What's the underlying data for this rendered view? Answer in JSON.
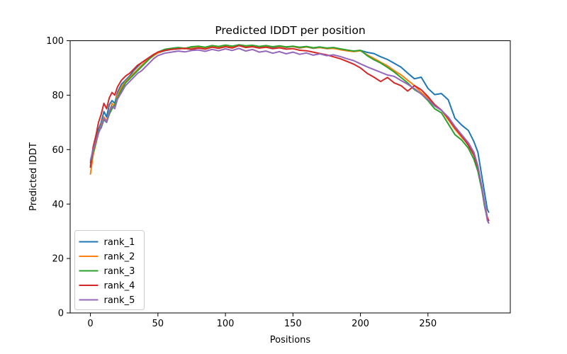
{
  "chart_data": {
    "type": "line",
    "title": "Predicted lDDT per position",
    "xlabel": "Positions",
    "ylabel": "Predicted lDDT",
    "xlim": [
      -15,
      311
    ],
    "ylim": [
      0,
      100
    ],
    "xticks": [
      0,
      50,
      100,
      150,
      200,
      250
    ],
    "yticks": [
      0,
      20,
      40,
      60,
      80,
      100
    ],
    "grid": false,
    "legend_position": "lower left",
    "background_color": "#ffffff",
    "axes_edge_color": "#000000",
    "legend_border_color": "#cccccc",
    "x": [
      0,
      2,
      4,
      6,
      8,
      10,
      12,
      14,
      16,
      18,
      20,
      23,
      26,
      29,
      32,
      35,
      38,
      41,
      44,
      47,
      50,
      55,
      60,
      65,
      70,
      75,
      80,
      85,
      90,
      95,
      100,
      105,
      110,
      115,
      120,
      125,
      130,
      135,
      140,
      145,
      150,
      155,
      160,
      165,
      170,
      175,
      180,
      185,
      190,
      195,
      200,
      205,
      210,
      215,
      220,
      225,
      230,
      235,
      240,
      245,
      250,
      255,
      260,
      265,
      270,
      275,
      280,
      284,
      287,
      290,
      292,
      294,
      295
    ],
    "series": [
      {
        "name": "rank_1",
        "color": "#1f77b4",
        "y": [
          55.2,
          60.5,
          63,
          67.5,
          70,
          74,
          72,
          76.5,
          78,
          77,
          81,
          84,
          85.5,
          87,
          89,
          90.5,
          92,
          93,
          94,
          95,
          95.5,
          96.3,
          96.8,
          97,
          97.3,
          96.9,
          97.5,
          97.2,
          97.8,
          97.4,
          98,
          97.6,
          98.2,
          97.7,
          98,
          97.5,
          97.9,
          97.4,
          98,
          97.5,
          97.9,
          97.3,
          97.7,
          97.2,
          97.5,
          97.1,
          97.3,
          96.8,
          96.4,
          96.1,
          96.4,
          95.7,
          95.3,
          94.1,
          93.1,
          91.7,
          90.3,
          88.1,
          86,
          86.6,
          82.5,
          80.2,
          80.6,
          78.3,
          71.5,
          69,
          67,
          63,
          59,
          50,
          44,
          38,
          37
        ]
      },
      {
        "name": "rank_2",
        "color": "#ff7f0e",
        "y": [
          51,
          58,
          62,
          66,
          69,
          72,
          70.5,
          74,
          77,
          76,
          80,
          83,
          85,
          86.5,
          88,
          89.5,
          91,
          92.5,
          93.5,
          94.5,
          95.5,
          96.5,
          97,
          97.3,
          97,
          97.5,
          97.8,
          97.4,
          98,
          97.7,
          98.2,
          97.8,
          98.3,
          97.9,
          98.2,
          97.8,
          98.1,
          97.7,
          98,
          97.6,
          97.9,
          97.4,
          97.7,
          97.3,
          97.5,
          97.1,
          97.2,
          96.7,
          96.3,
          96,
          96.3,
          94.8,
          93.5,
          92.1,
          90.8,
          89,
          87.5,
          85.5,
          83.5,
          81,
          79,
          76.5,
          74.5,
          71,
          67.5,
          64.5,
          62,
          58,
          53,
          46,
          40,
          35,
          34
        ]
      },
      {
        "name": "rank_3",
        "color": "#2ca02c",
        "y": [
          54,
          59,
          62.5,
          66.5,
          68,
          71,
          70,
          73,
          75,
          76.5,
          79,
          82,
          84.5,
          86,
          87.5,
          89,
          90.5,
          92,
          93.5,
          94.8,
          95.8,
          96.8,
          97.2,
          97.5,
          97.2,
          97.8,
          98,
          97.6,
          98.2,
          97.9,
          98.4,
          98,
          98.5,
          98.1,
          98.3,
          97.9,
          98.2,
          97.8,
          98.1,
          97.7,
          98,
          97.6,
          97.9,
          97.4,
          97.7,
          97.3,
          97.5,
          97,
          96.6,
          96.2,
          96.5,
          94.5,
          93,
          91.8,
          90.2,
          88.5,
          86.5,
          84.5,
          82,
          80.5,
          78,
          75,
          73.5,
          69.5,
          65.5,
          63.5,
          60.5,
          56.5,
          52,
          45,
          39,
          34.5,
          34
        ]
      },
      {
        "name": "rank_4",
        "color": "#d62728",
        "y": [
          53.5,
          61,
          65,
          70,
          73,
          77,
          75,
          79,
          81,
          80,
          83,
          85.5,
          87,
          88,
          89.5,
          91,
          92,
          93,
          94,
          95,
          95.8,
          96.4,
          96.8,
          97,
          97.2,
          96.8,
          97.3,
          96.9,
          97.6,
          97.2,
          97.8,
          97.3,
          98.2,
          97.5,
          97.8,
          97.3,
          97.6,
          97.1,
          97.4,
          96.9,
          97.1,
          96.5,
          96.3,
          95.8,
          95.3,
          94.8,
          94.1,
          93.4,
          92.4,
          91.4,
          90,
          88,
          86.6,
          85,
          86.5,
          84.5,
          83.5,
          81.5,
          83.5,
          82,
          79.5,
          76.5,
          74.5,
          71.5,
          68,
          65,
          61.5,
          58,
          53.5,
          46,
          40,
          35,
          34
        ]
      },
      {
        "name": "rank_5",
        "color": "#9467bd",
        "y": [
          56,
          60,
          63,
          66,
          68.5,
          71.5,
          70,
          74,
          76,
          75,
          78.5,
          81,
          83.5,
          85,
          86.5,
          88,
          89,
          90.5,
          92,
          93.5,
          94.5,
          95.4,
          95.8,
          96.2,
          95.9,
          96.4,
          96.6,
          96.1,
          96.8,
          96.3,
          97,
          96.4,
          97.2,
          96.2,
          96.8,
          95.8,
          96.2,
          95.4,
          96,
          95.2,
          95.8,
          95,
          95.5,
          94.7,
          95.2,
          94.5,
          94.8,
          94.2,
          93.4,
          92.7,
          91.5,
          90.4,
          89.4,
          88.4,
          87.4,
          86.9,
          85.4,
          84,
          82.4,
          80.4,
          78.4,
          76,
          74.4,
          72,
          68.5,
          65.5,
          62.5,
          59,
          54,
          46,
          40,
          34,
          33
        ]
      }
    ]
  }
}
